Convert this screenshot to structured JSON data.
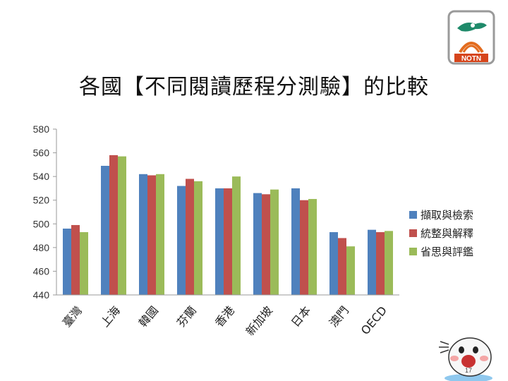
{
  "page": {
    "title": "各國【不同閱讀歷程分測驗】的比較",
    "logo_text": "NOTN",
    "page_number": "17"
  },
  "chart_data": {
    "type": "bar",
    "categories": [
      "臺灣",
      "上海",
      "韓國",
      "芬蘭",
      "香港",
      "新加坡",
      "日本",
      "澳門",
      "OECD"
    ],
    "series": [
      {
        "name": "擷取與檢索",
        "color": "#4f81bd",
        "values": [
          496,
          549,
          542,
          532,
          530,
          526,
          530,
          493,
          495
        ]
      },
      {
        "name": "統整與解釋",
        "color": "#c0504d",
        "values": [
          499,
          558,
          541,
          538,
          530,
          525,
          520,
          488,
          493
        ]
      },
      {
        "name": "省思與評鑑",
        "color": "#9bbb59",
        "values": [
          493,
          557,
          542,
          536,
          540,
          529,
          521,
          481,
          494
        ]
      }
    ],
    "yticks": [
      440,
      460,
      480,
      500,
      520,
      540,
      560,
      580
    ],
    "ylim": [
      440,
      580
    ],
    "legend_position": "right",
    "grid": false
  }
}
